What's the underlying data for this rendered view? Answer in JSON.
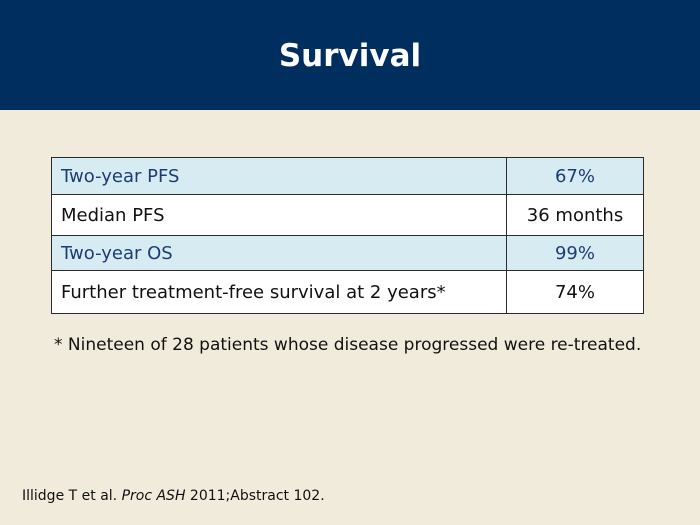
{
  "title": "Survival",
  "table": {
    "rows": [
      {
        "label": "Two-year PFS",
        "value": "67%"
      },
      {
        "label": "Median PFS",
        "value": "36 months"
      },
      {
        "label": "Two-year OS",
        "value": "99%"
      },
      {
        "label": "Further treatment-free survival at 2 years*",
        "value": "74%"
      }
    ]
  },
  "footnote": "* Nineteen of 28 patients whose disease progressed were re-treated.",
  "citation": {
    "authors": "Illidge T et al.",
    "journal": "Proc ASH",
    "details": "2011;Abstract 102."
  },
  "colors": {
    "header_bg": "#002f5f",
    "page_bg": "#f1ebdb",
    "shaded_row_bg": "#d7ebf3",
    "shaded_row_text": "#1c3d74"
  }
}
